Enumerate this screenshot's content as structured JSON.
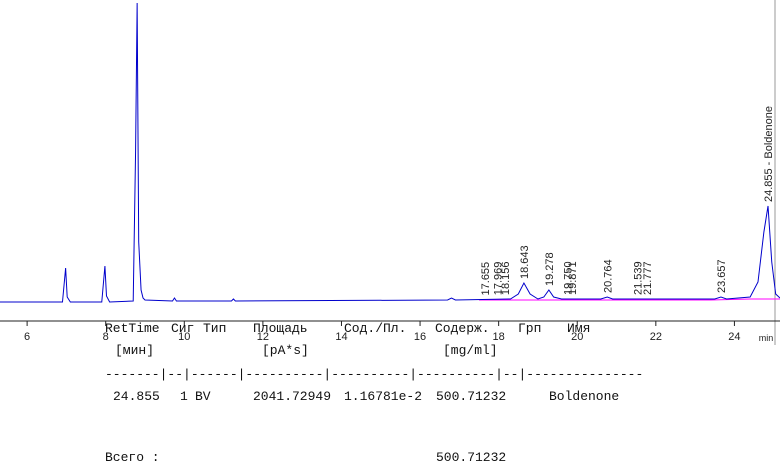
{
  "chart_data": {
    "type": "line",
    "x_label": "min",
    "xlim": [
      5.31,
      25.16
    ],
    "ylim": [
      -19,
      302
    ],
    "xticks": [
      6,
      8,
      10,
      12,
      14,
      16,
      18,
      20,
      22,
      24
    ],
    "x": [
      5.3,
      6.9,
      6.98,
      7.02,
      7.1,
      7.9,
      7.98,
      8.02,
      8.1,
      8.7,
      8.76,
      8.8,
      8.84,
      8.9,
      8.95,
      9.0,
      9.7,
      9.75,
      9.8,
      11.2,
      11.25,
      11.3,
      16.7,
      16.8,
      16.9,
      18.3,
      18.5,
      18.643,
      18.8,
      19.0,
      19.15,
      19.278,
      19.4,
      19.6,
      20.6,
      20.764,
      20.9,
      23.5,
      23.657,
      23.8,
      24.4,
      24.6,
      24.75,
      24.855,
      24.95,
      25.05,
      25.16
    ],
    "series": [
      {
        "color": "#0000cc",
        "values": [
          0,
          0,
          34,
          5,
          0,
          0,
          36,
          6,
          0,
          1,
          150,
          299,
          60,
          12,
          4,
          2,
          1,
          4,
          1,
          1,
          3,
          1,
          2,
          4,
          2,
          3,
          8,
          19,
          8,
          3,
          5,
          12,
          5,
          3,
          3,
          5,
          3,
          3,
          5,
          3,
          5,
          20,
          70,
          96,
          40,
          8,
          4
        ]
      }
    ],
    "baseline": {
      "color": "#ff00ff",
      "x": [
        17.5,
        19.0,
        19.6,
        20.6,
        21.5,
        23.4,
        24.4,
        25.16
      ],
      "values": [
        2,
        2,
        2,
        2,
        2,
        2,
        3,
        3
      ]
    },
    "annotations": [
      {
        "x": 17.655,
        "label": "17.655"
      },
      {
        "x": 17.969,
        "label": "17.969"
      },
      {
        "x": 18.156,
        "label": "18.156"
      },
      {
        "x": 18.643,
        "label": "18.643"
      },
      {
        "x": 19.278,
        "label": "19.278"
      },
      {
        "x": 19.75,
        "label": "19.750"
      },
      {
        "x": 19.871,
        "label": "19.871"
      },
      {
        "x": 20.764,
        "label": "20.764"
      },
      {
        "x": 21.539,
        "label": "21.539"
      },
      {
        "x": 21.777,
        "label": "21.777"
      },
      {
        "x": 23.657,
        "label": "23.657"
      },
      {
        "x": 24.855,
        "label": "24.855 - Boldenone"
      }
    ]
  },
  "report": {
    "columns": [
      {
        "name": "RetTime",
        "unit": "[мин]"
      },
      {
        "name": "Сиг"
      },
      {
        "name": "Тип"
      },
      {
        "name": "Площадь",
        "unit": "[pA*s]"
      },
      {
        "name": "Сод./Пл."
      },
      {
        "name": "Содерж.",
        "unit": "[mg/ml]"
      },
      {
        "name": "Грп"
      },
      {
        "name": "Имя"
      }
    ],
    "separator": "-------|--|------|----------|----------|----------|--|---------------",
    "rows": [
      [
        "24.855",
        "1",
        "BV",
        "2041.72949",
        "1.16781e-2",
        "500.71232",
        "",
        "Boldenone"
      ]
    ],
    "total_label": "Всего :",
    "total_value": "500.71232"
  }
}
